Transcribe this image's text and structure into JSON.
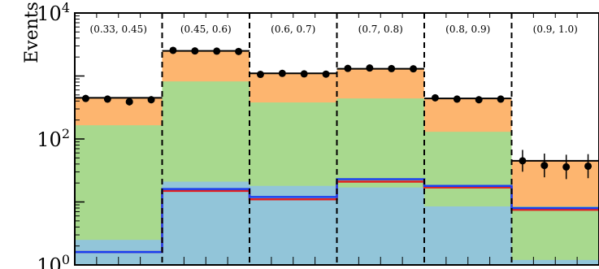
{
  "chart_data": {
    "type": "bar",
    "stacked": true,
    "ylabel": "Events",
    "y_scale": "log",
    "ylim": [
      1,
      10000
    ],
    "y_ticks": [
      {
        "value": 1,
        "base": "10",
        "exp": "0"
      },
      {
        "value": 100,
        "base": "10",
        "exp": "2"
      },
      {
        "value": 10000,
        "base": "10",
        "exp": "4"
      }
    ],
    "categories": [
      "(0.33, 0.45)",
      "(0.45, 0.6)",
      "(0.6, 0.7)",
      "(0.7, 0.8)",
      "(0.8, 0.9)",
      "(0.9, 1.0)"
    ],
    "sub_bins_per_category": 4,
    "series": [
      {
        "color": "#92c5d9",
        "values": [
          2.5,
          21,
          18,
          17,
          8.5,
          1.2
        ]
      },
      {
        "color": "#a8d98e",
        "values": [
          165,
          820,
          380,
          440,
          130,
          8.5
        ]
      },
      {
        "color": "#fdb56f",
        "values": [
          450,
          2500,
          1100,
          1300,
          440,
          45
        ]
      }
    ],
    "line_series": [
      {
        "color": "#e02020",
        "values": [
          1.6,
          15,
          11,
          21,
          17,
          7.5
        ]
      },
      {
        "color": "#1a3ff0",
        "values": [
          1.6,
          16,
          12,
          23,
          18,
          8.0
        ]
      }
    ],
    "points": [
      [
        440,
        430,
        390,
        420
      ],
      [
        2550,
        2500,
        2480,
        2450
      ],
      [
        1060,
        1100,
        1080,
        1070
      ],
      [
        1320,
        1340,
        1310,
        1300
      ],
      [
        450,
        430,
        420,
        430
      ],
      [
        45,
        38,
        36,
        37
      ]
    ],
    "points_color": "#000000"
  }
}
